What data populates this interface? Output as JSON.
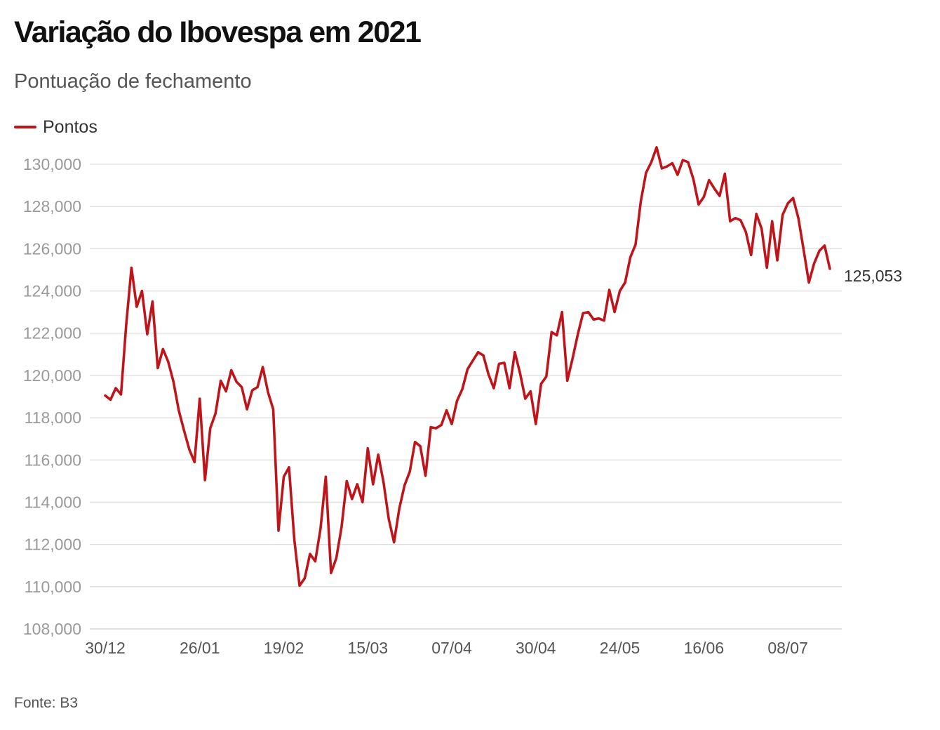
{
  "chart_data": {
    "type": "line",
    "title": "Variação do Ibovespa em 2021",
    "subtitle": "Pontuação de fechamento",
    "source": "Fonte: B3",
    "series": [
      {
        "name": "Pontos",
        "color": "#c0141b",
        "values": [
          119050,
          118850,
          119400,
          119100,
          122400,
          125100,
          123250,
          124000,
          121950,
          123500,
          120350,
          121250,
          120650,
          119700,
          118350,
          117400,
          116500,
          115900,
          118900,
          115050,
          117500,
          118200,
          119750,
          119250,
          120250,
          119700,
          119450,
          118400,
          119300,
          119450,
          120400,
          119200,
          118400,
          112650,
          115200,
          115650,
          112250,
          110050,
          110400,
          111550,
          111200,
          112750,
          115200,
          110650,
          111350,
          112800,
          115000,
          114150,
          114850,
          114000,
          116550,
          114850,
          116250,
          114950,
          113200,
          112100,
          113700,
          114800,
          115450,
          116850,
          116650,
          115250,
          117550,
          117500,
          117650,
          118350,
          117700,
          118800,
          119350,
          120300,
          120700,
          121100,
          120950,
          120050,
          119400,
          120550,
          120600,
          119400,
          121100,
          120100,
          118900,
          119250,
          117700,
          119600,
          119950,
          122050,
          121900,
          123000,
          119750,
          120800,
          121950,
          122950,
          123000,
          122650,
          122700,
          122600,
          124050,
          123000,
          124000,
          124400,
          125600,
          126200,
          128250,
          129600,
          130100,
          130800,
          129800,
          129900,
          130050,
          129500,
          130200,
          130100,
          129300,
          128100,
          128450,
          129250,
          128850,
          128500,
          129550,
          127300,
          127450,
          127350,
          126800,
          125700,
          127650,
          126950,
          125100,
          127300,
          125450,
          127600,
          128150,
          128400,
          127450,
          125950,
          124400,
          125300,
          125900,
          126150,
          125053
        ]
      }
    ],
    "x_tick_labels": [
      "30/12",
      "26/01",
      "19/02",
      "15/03",
      "07/04",
      "30/04",
      "24/05",
      "16/06",
      "08/07"
    ],
    "x_tick_indices": [
      0,
      18,
      34,
      50,
      66,
      82,
      98,
      114,
      130
    ],
    "y_ticks": [
      108000,
      110000,
      112000,
      114000,
      116000,
      118000,
      120000,
      122000,
      124000,
      126000,
      128000,
      130000
    ],
    "y_tick_labels": [
      "108,000",
      "110,000",
      "112,000",
      "114,000",
      "116,000",
      "118,000",
      "120,000",
      "122,000",
      "124,000",
      "126,000",
      "128,000",
      "130,000"
    ],
    "ylim": [
      108000,
      130000
    ],
    "last_value_label": "125,053",
    "grid": true,
    "legend_position": "top-left",
    "colors": {
      "line": "#c0141b",
      "grid": "#dddddd",
      "tick_text": "#999999",
      "axis_text": "#555555"
    }
  }
}
